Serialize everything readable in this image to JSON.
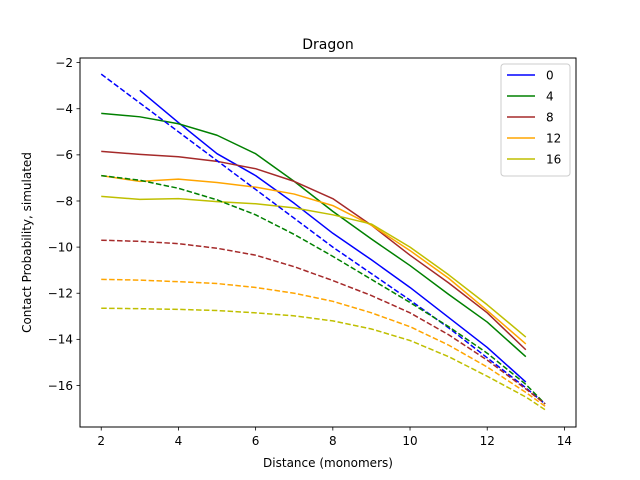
{
  "chart_data": {
    "type": "line",
    "title": "Dragon",
    "xlabel": "Distance (monomers)",
    "ylabel": "Contact Probability, simulated",
    "xlim": [
      1.45,
      14.3
    ],
    "ylim": [
      -17.8,
      -1.8
    ],
    "xticks": [
      2,
      4,
      6,
      8,
      10,
      12,
      14
    ],
    "yticks": [
      -16,
      -14,
      -12,
      -10,
      -8,
      -6,
      -4,
      -2
    ],
    "grid": false,
    "legend_placement": "top-right",
    "series": [
      {
        "name": "0",
        "color": "#0000ff",
        "style": "solid",
        "x": [
          3,
          4,
          5,
          6,
          7,
          8,
          9,
          10,
          11,
          12,
          13
        ],
        "y": [
          -3.2,
          -4.6,
          -5.95,
          -6.9,
          -8.1,
          -9.4,
          -10.55,
          -11.75,
          -13.05,
          -14.35,
          -15.85
        ]
      },
      {
        "name": "4",
        "color": "#008000",
        "style": "solid",
        "x": [
          2,
          3,
          4,
          5,
          6,
          7,
          8,
          9,
          10,
          11,
          12,
          13
        ],
        "y": [
          -4.2,
          -4.35,
          -4.65,
          -5.15,
          -5.95,
          -7.15,
          -8.45,
          -9.65,
          -10.8,
          -12.05,
          -13.25,
          -14.75
        ]
      },
      {
        "name": "8",
        "color": "#a52a2a",
        "style": "solid",
        "x": [
          2,
          3,
          4,
          5,
          6,
          7,
          8,
          9,
          10,
          11,
          12,
          13
        ],
        "y": [
          -5.85,
          -5.98,
          -6.08,
          -6.28,
          -6.6,
          -7.15,
          -7.9,
          -9.05,
          -10.35,
          -11.55,
          -12.85,
          -14.45
        ]
      },
      {
        "name": "12",
        "color": "#ffa500",
        "style": "solid",
        "x": [
          2,
          3,
          4,
          5,
          6,
          7,
          8,
          9,
          10,
          11,
          12,
          13
        ],
        "y": [
          -6.9,
          -7.15,
          -7.05,
          -7.2,
          -7.4,
          -7.7,
          -8.2,
          -9.05,
          -10.15,
          -11.35,
          -12.75,
          -14.2
        ]
      },
      {
        "name": "16",
        "color": "#bfbf00",
        "style": "solid",
        "x": [
          2,
          3,
          4,
          5,
          6,
          7,
          8,
          9,
          10,
          11,
          12,
          13
        ],
        "y": [
          -7.8,
          -7.93,
          -7.9,
          -8.03,
          -8.12,
          -8.3,
          -8.6,
          -9.0,
          -10.0,
          -11.2,
          -12.5,
          -13.9
        ]
      },
      {
        "color": "#0000ff",
        "style": "dashed",
        "x": [
          2,
          3,
          4,
          5,
          6,
          7,
          8,
          9,
          10,
          11,
          12,
          13,
          13.5
        ],
        "y": [
          -2.5,
          -3.75,
          -5.0,
          -6.25,
          -7.5,
          -8.75,
          -10.0,
          -11.15,
          -12.3,
          -13.5,
          -14.8,
          -16.1,
          -16.8
        ]
      },
      {
        "color": "#008000",
        "style": "dashed",
        "x": [
          2,
          3,
          4,
          5,
          6,
          7,
          8,
          9,
          10,
          11,
          12,
          13,
          13.5
        ],
        "y": [
          -6.9,
          -7.1,
          -7.45,
          -7.95,
          -8.6,
          -9.45,
          -10.4,
          -11.4,
          -12.4,
          -13.45,
          -14.6,
          -15.95,
          -16.8
        ]
      },
      {
        "color": "#a52a2a",
        "style": "dashed",
        "x": [
          2,
          3,
          4,
          5,
          6,
          7,
          8,
          9,
          10,
          11,
          12,
          13,
          13.5
        ],
        "y": [
          -9.7,
          -9.75,
          -9.85,
          -10.05,
          -10.35,
          -10.85,
          -11.45,
          -12.1,
          -12.85,
          -13.8,
          -14.9,
          -16.15,
          -16.8
        ]
      },
      {
        "color": "#ffa500",
        "style": "dashed",
        "x": [
          2,
          3,
          4,
          5,
          6,
          7,
          8,
          9,
          10,
          11,
          12,
          13,
          13.5
        ],
        "y": [
          -11.4,
          -11.43,
          -11.5,
          -11.58,
          -11.75,
          -12.0,
          -12.35,
          -12.85,
          -13.45,
          -14.25,
          -15.2,
          -16.3,
          -16.9
        ]
      },
      {
        "color": "#bfbf00",
        "style": "dashed",
        "x": [
          2,
          3,
          4,
          5,
          6,
          7,
          8,
          9,
          10,
          11,
          12,
          13,
          13.5
        ],
        "y": [
          -12.65,
          -12.67,
          -12.7,
          -12.75,
          -12.85,
          -12.98,
          -13.2,
          -13.55,
          -14.05,
          -14.75,
          -15.6,
          -16.5,
          -17.05
        ]
      }
    ]
  }
}
